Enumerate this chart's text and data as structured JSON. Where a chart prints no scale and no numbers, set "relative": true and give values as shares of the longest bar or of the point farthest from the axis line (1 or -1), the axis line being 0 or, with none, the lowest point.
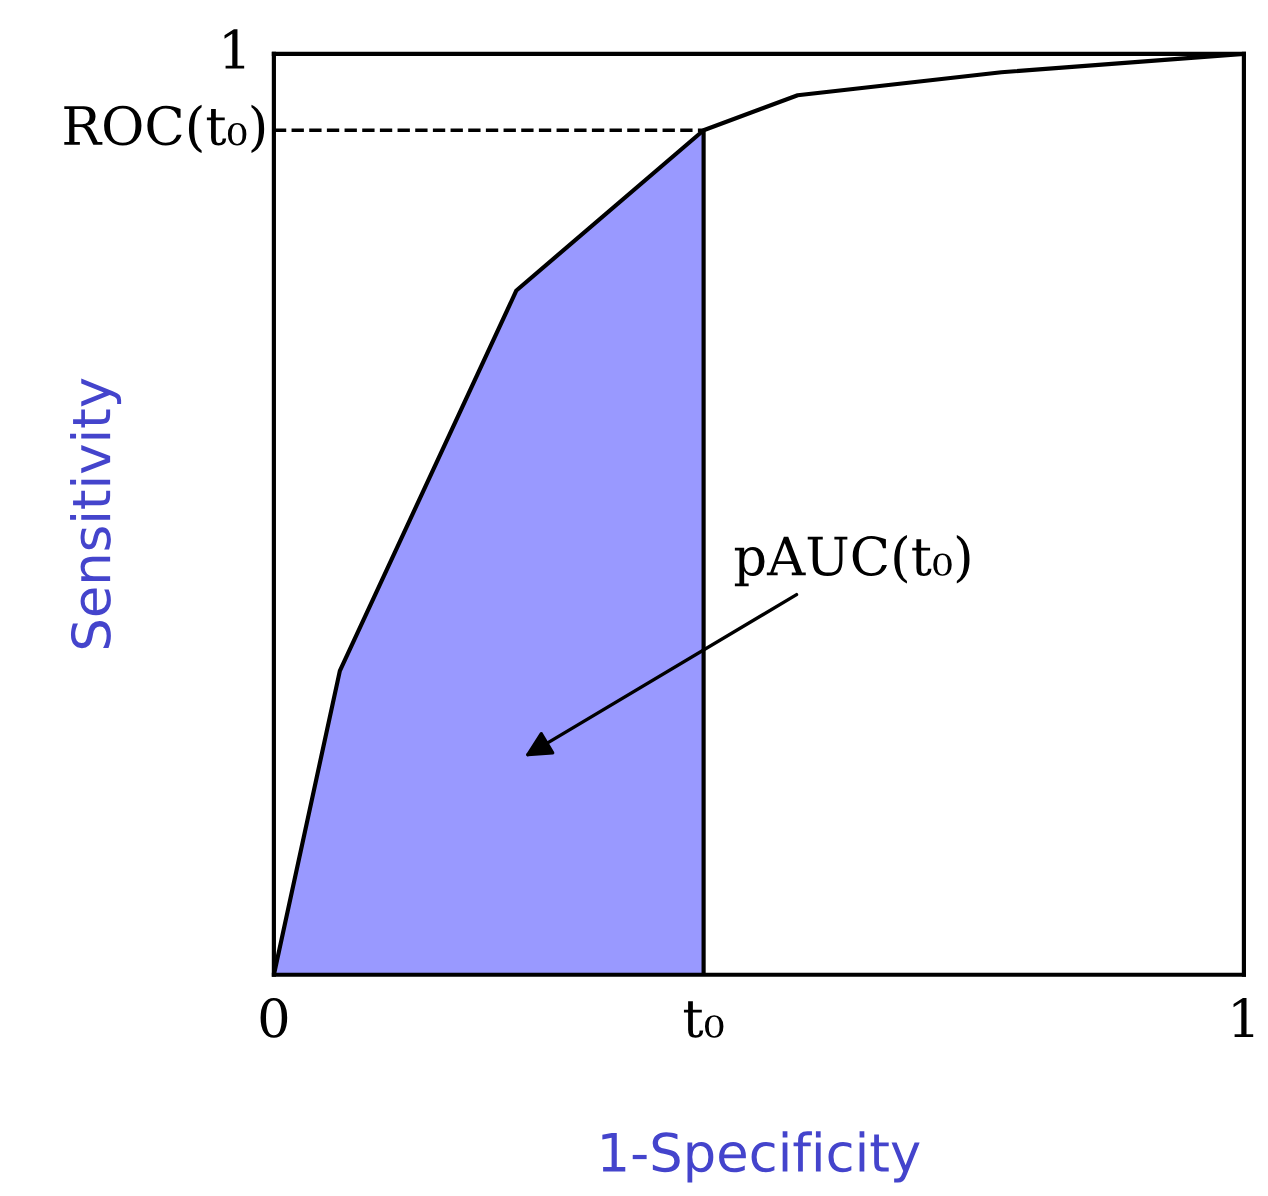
{
  "chart_data": {
    "type": "line",
    "xlabel": "1-Specificity",
    "ylabel": "Sensitivity",
    "relative": true,
    "series": [
      {
        "type": "area",
        "color": "#9999ff",
        "x": [
          0,
          0.068,
          0.25,
          0.443
        ],
        "values": [
          0,
          0.33,
          0.743,
          0.917
        ]
      },
      {
        "color": "#000000",
        "x": [
          0,
          0.068,
          0.25,
          0.443,
          0.54,
          0.75,
          1
        ],
        "values": [
          0,
          0.33,
          0.743,
          0.917,
          0.955,
          0.98,
          1
        ]
      }
    ],
    "ref_lines": [
      {
        "axis": "y",
        "value": 0.917,
        "label": "ROC(t₀)",
        "line_style": "dashed",
        "color": "#000000"
      },
      {
        "axis": "x",
        "value": 0.443,
        "label": null,
        "line_style": "solid",
        "color": "#000000"
      }
    ],
    "annotations": [
      "pAUC(t₀)",
      "1"
    ],
    "xlim": [
      0,
      1
    ],
    "xticks": [
      0,
      {
        "value": 0.443,
        "label": "t₀"
      },
      1
    ],
    "grid": false
  }
}
